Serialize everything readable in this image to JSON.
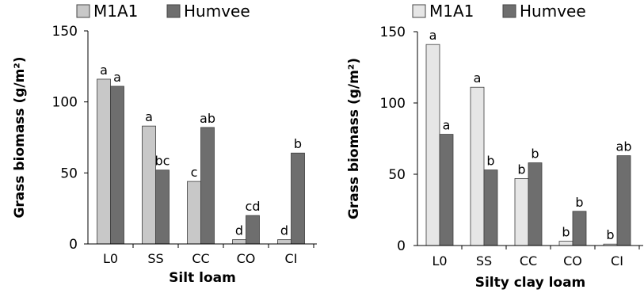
{
  "chart_data": [
    {
      "type": "bar",
      "title": "",
      "xlabel": "Silt loam",
      "ylabel": "Grass biomass (g/m²)",
      "ylim": [
        0,
        150
      ],
      "yticks": [
        "0",
        "50",
        "100",
        "150"
      ],
      "categories": [
        "L0",
        "SS",
        "CC",
        "CO",
        "CI"
      ],
      "legend_position": "top-left",
      "grid": false,
      "series": [
        {
          "name": "M1A1",
          "color": "#c8c8c8",
          "values": [
            116,
            83,
            44,
            3,
            3
          ],
          "labels": [
            "a",
            "a",
            "c",
            "d",
            "d"
          ]
        },
        {
          "name": "Humvee",
          "color": "#6e6e6e",
          "values": [
            111,
            52,
            82,
            20,
            64
          ],
          "labels": [
            "a",
            "bc",
            "ab",
            "cd",
            "b"
          ]
        }
      ]
    },
    {
      "type": "bar",
      "title": "",
      "xlabel": "Silty clay loam",
      "ylabel": "Grass biomass (g/m²)",
      "ylim": [
        0,
        150
      ],
      "yticks": [
        "0",
        "50",
        "100",
        "150"
      ],
      "categories": [
        "L0",
        "SS",
        "CC",
        "CO",
        "CI"
      ],
      "legend_position": "top-left",
      "grid": false,
      "series": [
        {
          "name": "M1A1",
          "color": "#e6e6e6",
          "values": [
            141,
            111,
            47,
            3,
            1
          ],
          "labels": [
            "a",
            "a",
            "b",
            "b",
            "b"
          ]
        },
        {
          "name": "Humvee",
          "color": "#6e6e6e",
          "values": [
            78,
            53,
            58,
            24,
            63
          ],
          "labels": [
            "a",
            "b",
            "b",
            "b",
            "ab"
          ]
        }
      ]
    }
  ]
}
